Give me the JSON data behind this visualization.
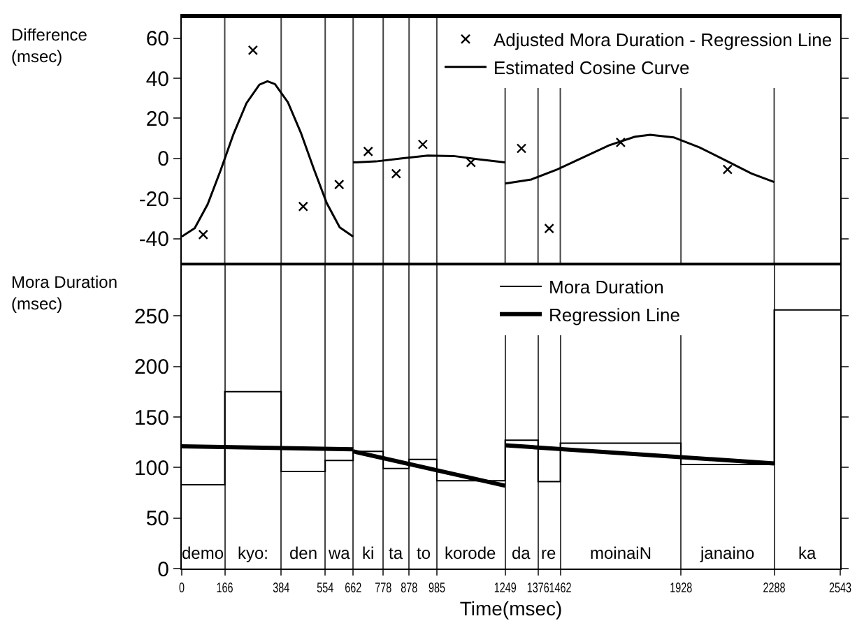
{
  "chart_data": [
    {
      "type": "scatter",
      "ylabel": "Difference\n(msec)",
      "xlim": [
        0,
        2543
      ],
      "ylim": [
        -52,
        70
      ],
      "yticks": [
        -40,
        -20,
        0,
        20,
        40,
        60
      ],
      "tick_labels": "y",
      "legend": "top right",
      "series": [
        {
          "name": "Adjusted Mora Duration - Regression Line",
          "marker": "cross",
          "color": "#000000",
          "x": [
            83,
            275,
            469,
            608,
            720,
            828,
            931,
            1117,
            1312,
            1419,
            1695,
            2108
          ],
          "values": [
            -38,
            54,
            -24,
            -13,
            3.5,
            -7.6,
            7,
            -2,
            5,
            -35,
            8,
            -5.5
          ]
        },
        {
          "name": "Estimated Cosine Curve",
          "type": "line",
          "color": "#000000",
          "x": [
            0,
            50,
            100,
            150,
            200,
            250,
            300,
            331,
            360,
            410,
            460,
            510,
            560,
            610,
            662,
            null,
            662,
            750,
            850,
            950,
            1050,
            1150,
            1249,
            null,
            1249,
            1350,
            1450,
            1550,
            1650,
            1750,
            1809,
            1900,
            2000,
            2100,
            2200,
            2288
          ],
          "values": [
            -39,
            -34.8,
            -22.9,
            -6,
            12.2,
            27.6,
            36.8,
            38.5,
            37.1,
            28,
            12.8,
            -5.2,
            -22.3,
            -34.4,
            -39,
            null,
            -2,
            -1.5,
            0,
            1.4,
            1.2,
            -0.5,
            -2,
            null,
            -12.5,
            -10.5,
            -5.5,
            0.5,
            6.5,
            10.8,
            11.8,
            10.5,
            5.5,
            -1,
            -7.5,
            -11.8
          ]
        }
      ],
      "ref_lines": [
        {
          "axis": "x",
          "value": 166,
          "color": "#444444"
        },
        {
          "axis": "x",
          "value": 384,
          "color": "#444444"
        },
        {
          "axis": "x",
          "value": 554,
          "color": "#444444"
        },
        {
          "axis": "x",
          "value": 662,
          "color": "#444444"
        },
        {
          "axis": "x",
          "value": 778,
          "color": "#444444"
        },
        {
          "axis": "x",
          "value": 878,
          "color": "#444444"
        },
        {
          "axis": "x",
          "value": 985,
          "color": "#444444"
        },
        {
          "axis": "x",
          "value": 1249,
          "color": "#444444"
        },
        {
          "axis": "x",
          "value": 1376,
          "color": "#444444"
        },
        {
          "axis": "x",
          "value": 1462,
          "color": "#444444"
        },
        {
          "axis": "x",
          "value": 1928,
          "color": "#444444"
        },
        {
          "axis": "x",
          "value": 2288,
          "color": "#444444"
        }
      ]
    },
    {
      "type": "step",
      "xlabel": "Time(msec)",
      "ylabel": "Mora Duration\n(msec)",
      "xlim": [
        0,
        2543
      ],
      "xticks": [
        0,
        166,
        384,
        554,
        662,
        778,
        878,
        985,
        1249,
        1376,
        1462,
        1928,
        2288,
        2543
      ],
      "ylim": [
        0,
        300
      ],
      "yticks": [
        0,
        50,
        100,
        150,
        200,
        250
      ],
      "legend": "top",
      "grid": "x",
      "series": [
        {
          "name": "Mora Duration",
          "color": "#000000",
          "x": [
            0,
            166,
            384,
            554,
            662,
            778,
            878,
            985,
            1249,
            1376,
            1462,
            1928,
            2288,
            2543
          ],
          "values": [
            83,
            175,
            96,
            107,
            116,
            99,
            108,
            87,
            127,
            86,
            124,
            103,
            256,
            256
          ]
        },
        {
          "name": "Regression Line",
          "type": "line",
          "color": "#000000",
          "x": [
            0,
            662,
            null,
            662,
            1249,
            null,
            1249,
            2288
          ],
          "values": [
            121,
            118,
            null,
            116,
            82,
            null,
            122,
            104
          ]
        }
      ],
      "annotations": [
        "demo",
        "kyo:",
        "den",
        "wa",
        "ki",
        "ta",
        "to",
        "korode",
        "da",
        "re",
        "moinaiN",
        "janaino",
        "ka"
      ]
    }
  ]
}
